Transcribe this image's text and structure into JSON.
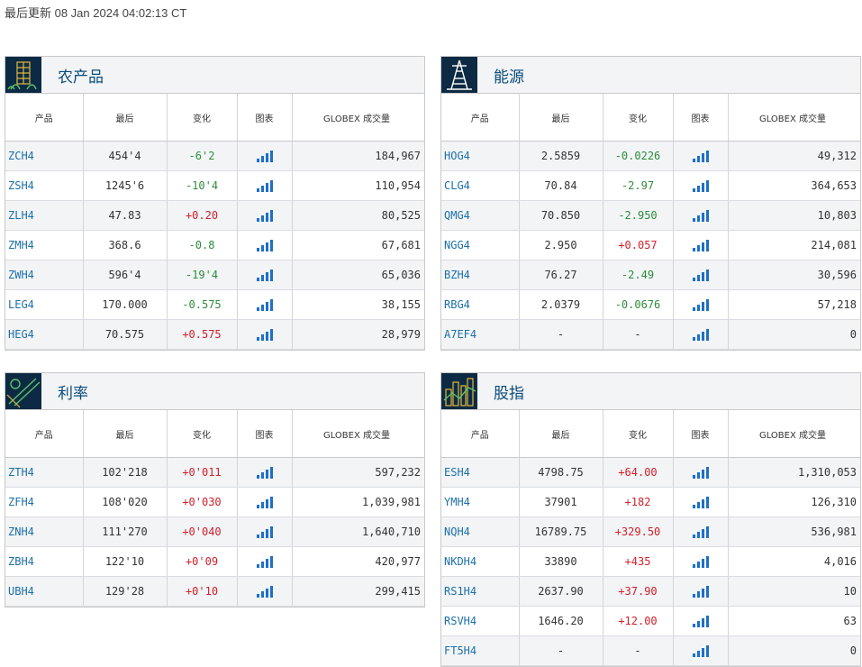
{
  "updated": "最后更新 08 Jan 2024 04:02:13 CT",
  "headers": {
    "product": "产品",
    "last": "最后",
    "change": "变化",
    "chart": "图表",
    "volume": "GLOBEX 成交量"
  },
  "panels": [
    {
      "title": "农产品",
      "icon": "wheat-grid-icon",
      "rows": [
        {
          "code": "ZCH4",
          "last": "454'4",
          "change": "-6'2",
          "dir": "neg",
          "volume": "184,967"
        },
        {
          "code": "ZSH4",
          "last": "1245'6",
          "change": "-10'4",
          "dir": "neg",
          "volume": "110,954"
        },
        {
          "code": "ZLH4",
          "last": "47.83",
          "change": "+0.20",
          "dir": "pos",
          "volume": "80,525"
        },
        {
          "code": "ZMH4",
          "last": "368.6",
          "change": "-0.8",
          "dir": "neg",
          "volume": "67,681"
        },
        {
          "code": "ZWH4",
          "last": "596'4",
          "change": "-19'4",
          "dir": "neg",
          "volume": "65,036"
        },
        {
          "code": "LEG4",
          "last": "170.000",
          "change": "-0.575",
          "dir": "neg",
          "volume": "38,155"
        },
        {
          "code": "HEG4",
          "last": "70.575",
          "change": "+0.575",
          "dir": "pos",
          "volume": "28,979"
        }
      ]
    },
    {
      "title": "能源",
      "icon": "oil-derrick-icon",
      "rows": [
        {
          "code": "HOG4",
          "last": "2.5859",
          "change": "-0.0226",
          "dir": "neg",
          "volume": "49,312"
        },
        {
          "code": "CLG4",
          "last": "70.84",
          "change": "-2.97",
          "dir": "neg",
          "volume": "364,653"
        },
        {
          "code": "QMG4",
          "last": "70.850",
          "change": "-2.950",
          "dir": "neg",
          "volume": "10,803"
        },
        {
          "code": "NGG4",
          "last": "2.950",
          "change": "+0.057",
          "dir": "pos",
          "volume": "214,081"
        },
        {
          "code": "BZH4",
          "last": "76.27",
          "change": "-2.49",
          "dir": "neg",
          "volume": "30,596"
        },
        {
          "code": "RBG4",
          "last": "2.0379",
          "change": "-0.0676",
          "dir": "neg",
          "volume": "57,218"
        },
        {
          "code": "A7EF4",
          "last": "-",
          "change": "-",
          "dir": "neu",
          "volume": "0"
        }
      ]
    },
    {
      "title": "利率",
      "icon": "interest-rate-icon",
      "rows": [
        {
          "code": "ZTH4",
          "last": "102'218",
          "change": "+0'011",
          "dir": "pos",
          "volume": "597,232"
        },
        {
          "code": "ZFH4",
          "last": "108'020",
          "change": "+0'030",
          "dir": "pos",
          "volume": "1,039,981"
        },
        {
          "code": "ZNH4",
          "last": "111'270",
          "change": "+0'040",
          "dir": "pos",
          "volume": "1,640,710"
        },
        {
          "code": "ZBH4",
          "last": "122'10",
          "change": "+0'09",
          "dir": "pos",
          "volume": "420,977"
        },
        {
          "code": "UBH4",
          "last": "129'28",
          "change": "+0'10",
          "dir": "pos",
          "volume": "299,415"
        }
      ]
    },
    {
      "title": "股指",
      "icon": "city-skyline-icon",
      "rows": [
        {
          "code": "ESH4",
          "last": "4798.75",
          "change": "+64.00",
          "dir": "pos",
          "volume": "1,310,053"
        },
        {
          "code": "YMH4",
          "last": "37901",
          "change": "+182",
          "dir": "pos",
          "volume": "126,310"
        },
        {
          "code": "NQH4",
          "last": "16789.75",
          "change": "+329.50",
          "dir": "pos",
          "volume": "536,981"
        },
        {
          "code": "NKDH4",
          "last": "33890",
          "change": "+435",
          "dir": "pos",
          "volume": "4,016"
        },
        {
          "code": "RS1H4",
          "last": "2637.90",
          "change": "+37.90",
          "dir": "pos",
          "volume": "10"
        },
        {
          "code": "RSVH4",
          "last": "1646.20",
          "change": "+12.00",
          "dir": "pos",
          "volume": "63"
        },
        {
          "code": "FT5H4",
          "last": "-",
          "change": "-",
          "dir": "neu",
          "volume": "0"
        }
      ]
    }
  ]
}
